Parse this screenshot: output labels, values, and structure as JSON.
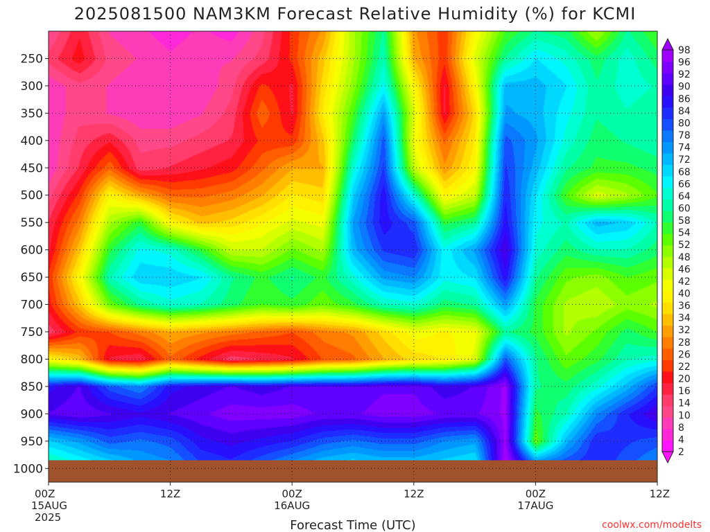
{
  "chart_data": {
    "type": "heatmap",
    "title": "2025081500 NAM3KM Forecast Relative Humidity (%) for KCMI",
    "xlabel": "Forecast Time (UTC)",
    "ylabel": "",
    "credit": "coolwx.com/modelts",
    "x_ticks": [
      {
        "hour": 0,
        "label": "00Z",
        "sub1": "15AUG",
        "sub2": "2025"
      },
      {
        "hour": 12,
        "label": "12Z",
        "sub1": "",
        "sub2": ""
      },
      {
        "hour": 24,
        "label": "00Z",
        "sub1": "16AUG",
        "sub2": ""
      },
      {
        "hour": 36,
        "label": "12Z",
        "sub1": "",
        "sub2": ""
      },
      {
        "hour": 48,
        "label": "00Z",
        "sub1": "17AUG",
        "sub2": ""
      },
      {
        "hour": 60,
        "label": "12Z",
        "sub1": "",
        "sub2": ""
      }
    ],
    "xlim_hours": [
      0,
      60
    ],
    "y_axis_pressure_hPa": true,
    "y_ticks": [
      "250",
      "300",
      "350",
      "400",
      "450",
      "500",
      "550",
      "600",
      "650",
      "700",
      "750",
      "800",
      "850",
      "900",
      "950",
      "1000"
    ],
    "ylim_hPa": [
      200,
      1025
    ],
    "surface_pressure_hPa": 985,
    "grid": true,
    "colorbar": {
      "position": "right",
      "ticks": [
        "98",
        "96",
        "92",
        "90",
        "86",
        "84",
        "80",
        "78",
        "74",
        "72",
        "68",
        "66",
        "64",
        "60",
        "58",
        "54",
        "52",
        "48",
        "46",
        "42",
        "40",
        "36",
        "34",
        "32",
        "28",
        "26",
        "22",
        "20",
        "16",
        "14",
        "10",
        "8",
        "4",
        "2"
      ],
      "colors_low_to_high": [
        "#ff14ff",
        "#ff28d8",
        "#ff3cb8",
        "#ff4888",
        "#ff3c6a",
        "#ff2240",
        "#ff1018",
        "#ff3a00",
        "#ff5e00",
        "#ff7e00",
        "#ff9e00",
        "#ffbe00",
        "#ffde00",
        "#fff200",
        "#f4ff00",
        "#d8ff00",
        "#b4ff00",
        "#8cff00",
        "#5cff00",
        "#30ff30",
        "#10ff70",
        "#00ffa8",
        "#00ffd0",
        "#00f6ff",
        "#00d8ff",
        "#00b8ff",
        "#0098ff",
        "#0a78ff",
        "#1450ff",
        "#1e2cff",
        "#2810ff",
        "#4000f0",
        "#6000ff",
        "#8000ff",
        "#a000ff"
      ]
    },
    "relative_humidity_grid": {
      "pressure_levels_hPa": [
        200,
        250,
        300,
        350,
        400,
        450,
        500,
        550,
        600,
        650,
        700,
        750,
        800,
        850,
        900,
        950,
        985
      ],
      "hours": [
        0,
        3,
        6,
        9,
        12,
        15,
        18,
        21,
        24,
        27,
        30,
        33,
        36,
        39,
        42,
        45,
        48,
        51,
        54,
        57,
        60
      ],
      "values": [
        [
          10,
          18,
          10,
          8,
          6,
          8,
          6,
          12,
          22,
          30,
          48,
          60,
          30,
          22,
          40,
          54,
          60,
          58,
          48,
          60,
          54
        ],
        [
          14,
          20,
          12,
          10,
          8,
          10,
          10,
          14,
          22,
          34,
          48,
          62,
          32,
          22,
          44,
          60,
          68,
          64,
          58,
          64,
          58
        ],
        [
          8,
          12,
          10,
          8,
          8,
          8,
          12,
          22,
          18,
          36,
          50,
          66,
          40,
          18,
          40,
          72,
          72,
          68,
          60,
          64,
          62
        ],
        [
          8,
          12,
          10,
          8,
          8,
          10,
          14,
          26,
          18,
          38,
          54,
          74,
          44,
          18,
          36,
          74,
          72,
          66,
          60,
          62,
          60
        ],
        [
          8,
          14,
          18,
          12,
          12,
          14,
          16,
          22,
          22,
          34,
          58,
          80,
          42,
          26,
          38,
          80,
          74,
          64,
          58,
          60,
          62
        ],
        [
          8,
          16,
          26,
          14,
          16,
          18,
          20,
          26,
          32,
          32,
          64,
          82,
          46,
          30,
          40,
          82,
          72,
          60,
          56,
          56,
          58
        ],
        [
          12,
          22,
          40,
          32,
          26,
          26,
          28,
          32,
          38,
          36,
          70,
          86,
          64,
          40,
          46,
          84,
          68,
          54,
          44,
          48,
          54
        ],
        [
          16,
          28,
          48,
          56,
          40,
          34,
          36,
          40,
          44,
          42,
          74,
          86,
          80,
          56,
          60,
          86,
          66,
          62,
          72,
          70,
          62
        ],
        [
          18,
          34,
          56,
          66,
          64,
          56,
          46,
          46,
          52,
          48,
          72,
          82,
          84,
          66,
          74,
          90,
          64,
          58,
          62,
          62,
          58
        ],
        [
          22,
          40,
          62,
          70,
          70,
          68,
          60,
          56,
          60,
          56,
          64,
          74,
          76,
          66,
          68,
          86,
          60,
          52,
          50,
          54,
          52
        ],
        [
          20,
          34,
          52,
          60,
          64,
          62,
          58,
          54,
          56,
          52,
          56,
          62,
          64,
          58,
          60,
          74,
          56,
          48,
          46,
          50,
          48
        ],
        [
          14,
          22,
          24,
          28,
          32,
          30,
          28,
          26,
          24,
          28,
          30,
          36,
          42,
          40,
          42,
          60,
          56,
          48,
          52,
          58,
          54
        ],
        [
          40,
          34,
          18,
          16,
          26,
          20,
          14,
          16,
          18,
          24,
          26,
          32,
          36,
          38,
          44,
          80,
          60,
          52,
          56,
          62,
          64
        ],
        [
          86,
          90,
          80,
          76,
          86,
          88,
          90,
          88,
          90,
          90,
          90,
          92,
          92,
          88,
          90,
          96,
          60,
          58,
          64,
          72,
          82
        ],
        [
          90,
          92,
          90,
          88,
          90,
          92,
          94,
          94,
          94,
          92,
          92,
          94,
          94,
          92,
          92,
          96,
          56,
          62,
          76,
          84,
          90
        ],
        [
          70,
          74,
          80,
          78,
          80,
          86,
          88,
          86,
          84,
          80,
          78,
          80,
          80,
          76,
          74,
          96,
          52,
          72,
          84,
          82,
          80
        ],
        [
          62,
          66,
          70,
          74,
          76,
          82,
          84,
          80,
          76,
          72,
          70,
          72,
          72,
          70,
          68,
          98,
          74,
          80,
          84,
          80,
          76
        ]
      ]
    }
  }
}
